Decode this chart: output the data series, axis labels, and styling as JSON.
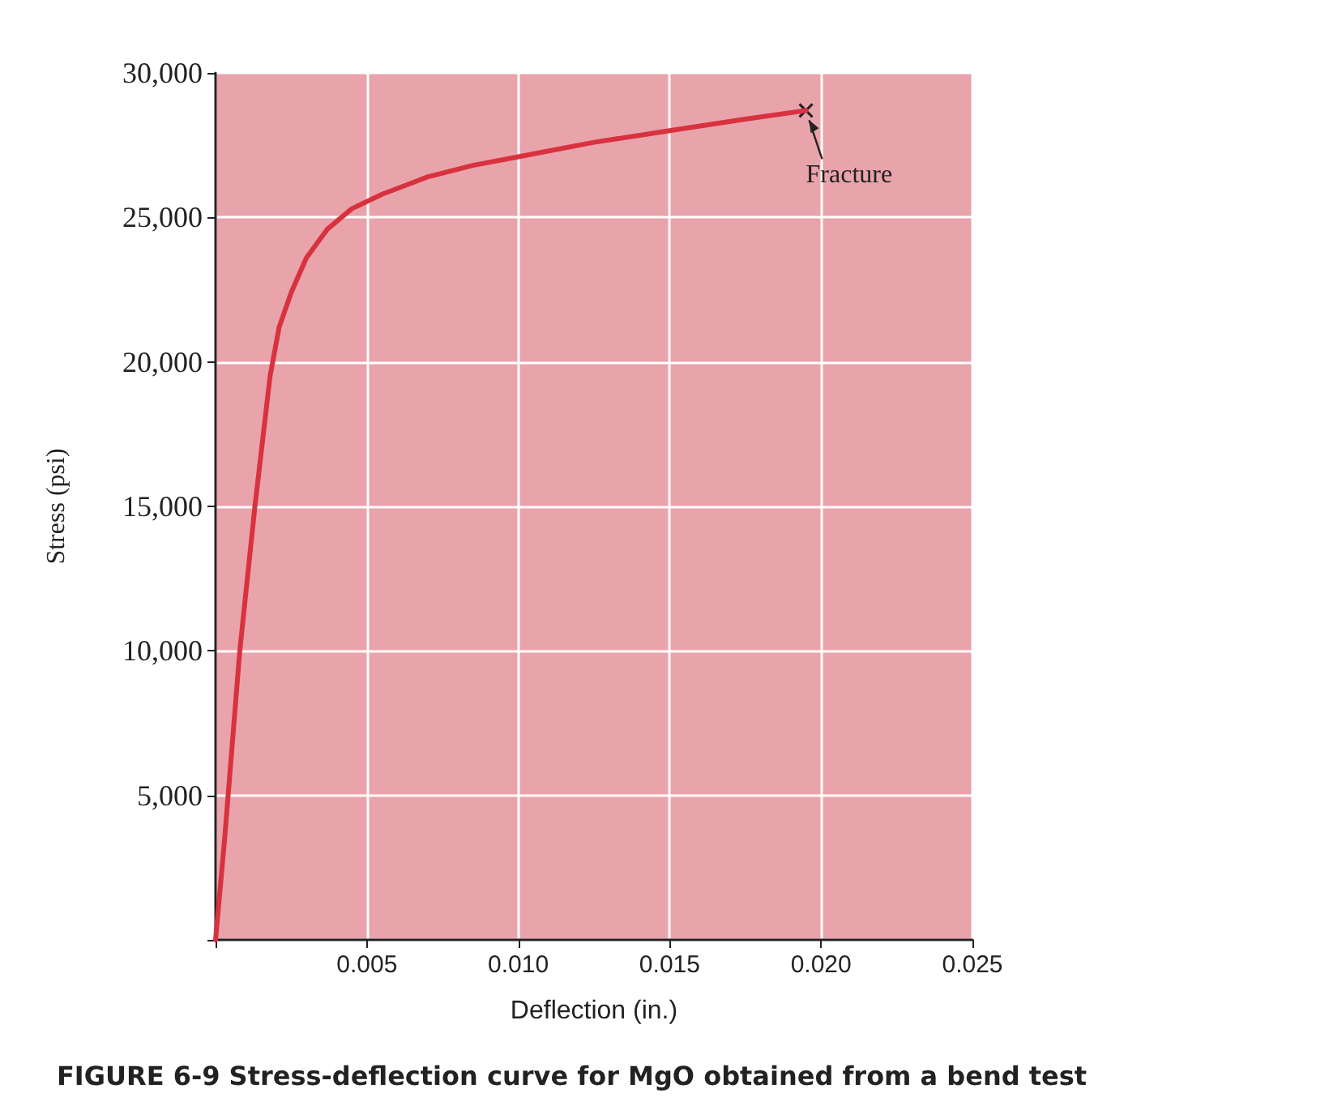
{
  "chart_data": {
    "type": "line",
    "title": "FIGURE 6-9 Stress-deflection curve for MgO obtained from a bend test",
    "xlabel": "Deflection (in.)",
    "ylabel": "Stress (psi)",
    "x": [
      0,
      0.0003,
      0.0008,
      0.0013,
      0.0018,
      0.0021,
      0.0025,
      0.003,
      0.0037,
      0.0045,
      0.0055,
      0.007,
      0.0085,
      0.01,
      0.0125,
      0.015,
      0.0175,
      0.0195
    ],
    "series": [
      {
        "color": "#d8323f",
        "values": [
          0,
          3500,
          10000,
          15000,
          19500,
          21200,
          22400,
          23600,
          24600,
          25300,
          25800,
          26400,
          26800,
          27100,
          27600,
          28000,
          28400,
          28700
        ]
      }
    ],
    "xlim": [
      0,
      0.025
    ],
    "xticks": [
      {
        "value": 0,
        "label": null
      },
      0.005,
      {
        "value": 0.01,
        "label": "0.010"
      },
      0.015,
      {
        "value": 0.02,
        "label": "0.020"
      },
      0.025
    ],
    "ylim": [
      0,
      30000
    ],
    "yticks": [
      {
        "value": 0,
        "label": null
      },
      {
        "value": 5000,
        "label": "5,000"
      },
      {
        "value": 10000,
        "label": "10,000"
      },
      {
        "value": 15000,
        "label": "15,000"
      },
      {
        "value": 20000,
        "label": "20,000"
      },
      {
        "value": 25000,
        "label": "25,000"
      },
      {
        "value": 30000,
        "label": "30,000"
      }
    ],
    "annotations": [
      {
        "text": "Fracture",
        "x": 0.0195,
        "y": 28700
      }
    ],
    "grid": true,
    "marker": "none",
    "line_style": "solid"
  }
}
